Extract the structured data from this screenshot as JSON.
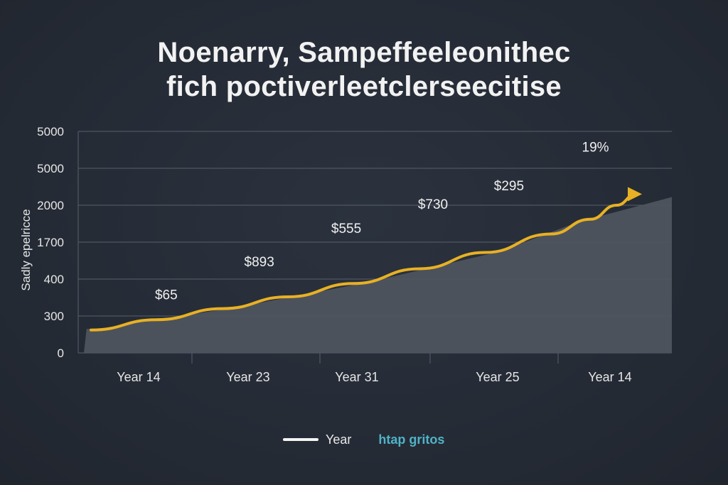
{
  "title": {
    "line1": "Noenarry, Sampeffeeleonithec",
    "line2": "fich poctiverleetclerseecitise"
  },
  "legend": {
    "series_label": "Year",
    "note": "htap gritos"
  },
  "colors": {
    "background": "#262c37",
    "line": "#e8b124",
    "area": "#4f5660",
    "grid": "#59606b",
    "legend_note": "#4fb3c8"
  },
  "chart_data": {
    "type": "area",
    "title": "Noenarry, Sampeffeeleonithec fich poctiverleetclerseecitise",
    "ylabel": "Sadly epelricce",
    "xlabel": "",
    "y_tick_labels": [
      "0",
      "300",
      "400",
      "1700",
      "2000",
      "5000",
      "5000"
    ],
    "categories": [
      "Year 14",
      "Year 23",
      "Year 31",
      "Year 25",
      "Year 14"
    ],
    "ylim": [
      0,
      6
    ],
    "grid": true,
    "series": [
      {
        "name": "Year",
        "x": [
          0,
          0.5,
          1,
          1.5,
          2,
          2.5,
          3,
          3.5,
          3.8,
          4.0,
          4.15
        ],
        "values": [
          0.62,
          0.9,
          1.2,
          1.52,
          1.88,
          2.28,
          2.72,
          3.22,
          3.62,
          4.0,
          4.3
        ]
      }
    ],
    "area_profile": {
      "x": [
        -0.12,
        -0.1,
        0,
        1,
        2,
        3,
        3.6,
        4.3
      ],
      "values": [
        0,
        0.65,
        0.66,
        1.22,
        1.9,
        2.74,
        3.55,
        4.22
      ]
    },
    "data_labels": [
      {
        "text": "$65",
        "x": 0.2,
        "y": 1.45
      },
      {
        "text": "$893",
        "x": 1.05,
        "y": 2.35
      },
      {
        "text": "$555",
        "x": 1.85,
        "y": 3.25
      },
      {
        "text": "$730",
        "x": 2.5,
        "y": 3.9
      },
      {
        "text": "$295",
        "x": 3.05,
        "y": 4.4
      },
      {
        "text": "19%",
        "x": 3.82,
        "y": 5.45
      }
    ],
    "annotation": "19%",
    "legend_position": "bottom-center"
  }
}
